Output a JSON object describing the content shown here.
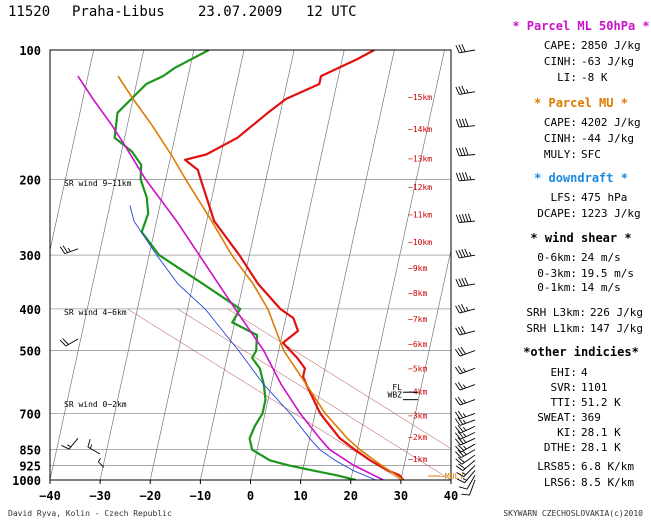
{
  "header": {
    "station": "11520",
    "place": "Praha-Libus",
    "date": "23.07.2009",
    "time": "12 UTC"
  },
  "chart_data": {
    "type": "line",
    "chart_kind": "skew-T log-P diagram",
    "xlabel": "",
    "ylabel": "",
    "temp_range": [
      -40,
      40
    ],
    "temp_ticks": [
      "−40",
      "−30",
      "−20",
      "−10",
      "0",
      "10",
      "20",
      "30",
      "40"
    ],
    "temp_tick_values": [
      -40,
      -30,
      -20,
      -10,
      0,
      10,
      20,
      30,
      40
    ],
    "pressure_range": [
      1000,
      100
    ],
    "pressure_ticks": [
      100,
      200,
      300,
      400,
      500,
      700,
      850,
      925,
      1000
    ],
    "height_marks": [
      {
        "label": "−1km",
        "p": 890
      },
      {
        "label": "−2km",
        "p": 790
      },
      {
        "label": "−3km",
        "p": 705
      },
      {
        "label": "−4km",
        "p": 620
      },
      {
        "label": "−5km",
        "p": 548
      },
      {
        "label": "−6km",
        "p": 480
      },
      {
        "label": "−7km",
        "p": 420
      },
      {
        "label": "−8km",
        "p": 365
      },
      {
        "label": "−9km",
        "p": 320
      },
      {
        "label": "−10km",
        "p": 278
      },
      {
        "label": "−11km",
        "p": 240
      },
      {
        "label": "−12km",
        "p": 207
      },
      {
        "label": "−13km",
        "p": 178
      },
      {
        "label": "−14km",
        "p": 152
      },
      {
        "label": "−15km",
        "p": 128
      }
    ],
    "levels": [
      {
        "label": "FL",
        "p": 615
      },
      {
        "label": "WBZ",
        "p": 640
      },
      {
        "label": "−MULY",
        "p": 1000
      }
    ],
    "shear_labels": [
      {
        "text": "SR wind 9−11km",
        "p": 223
      },
      {
        "text": "SR wind 4−6km",
        "p": 445
      },
      {
        "text": "SR wind 0−2km",
        "p": 730
      }
    ],
    "series": [
      {
        "name": "temperature",
        "color": "#e31010",
        "points": [
          [
            1000,
            30.5
          ],
          [
            975,
            29.5
          ],
          [
            950,
            27
          ],
          [
            925,
            25
          ],
          [
            900,
            23
          ],
          [
            850,
            19.5
          ],
          [
            800,
            16
          ],
          [
            700,
            11
          ],
          [
            600,
            7
          ],
          [
            575,
            6
          ],
          [
            550,
            6
          ],
          [
            520,
            4
          ],
          [
            480,
            0.5
          ],
          [
            450,
            3
          ],
          [
            420,
            1.5
          ],
          [
            400,
            -1.5
          ],
          [
            350,
            -7
          ],
          [
            300,
            -12
          ],
          [
            250,
            -18.5
          ],
          [
            200,
            -23
          ],
          [
            190,
            -24
          ],
          [
            180,
            -27
          ],
          [
            175,
            -23
          ],
          [
            160,
            -17.5
          ],
          [
            140,
            -12.5
          ],
          [
            130,
            -9.5
          ],
          [
            120,
            -3.5
          ],
          [
            115,
            -3.5
          ],
          [
            105,
            3
          ],
          [
            100,
            6
          ]
        ]
      },
      {
        "name": "dewpoint",
        "color": "#1c961c",
        "points": [
          [
            1000,
            21
          ],
          [
            975,
            17
          ],
          [
            950,
            12
          ],
          [
            925,
            7
          ],
          [
            900,
            3
          ],
          [
            850,
            -1
          ],
          [
            800,
            -2
          ],
          [
            750,
            -1.5
          ],
          [
            700,
            -0.5
          ],
          [
            650,
            -0.5
          ],
          [
            600,
            -1.5
          ],
          [
            550,
            -3
          ],
          [
            520,
            -5
          ],
          [
            500,
            -4.5
          ],
          [
            460,
            -5
          ],
          [
            430,
            -10.5
          ],
          [
            400,
            -9.5
          ],
          [
            350,
            -18
          ],
          [
            300,
            -28
          ],
          [
            265,
            -32.5
          ],
          [
            240,
            -32
          ],
          [
            220,
            -33
          ],
          [
            200,
            -35
          ],
          [
            185,
            -35.5
          ],
          [
            172,
            -38
          ],
          [
            160,
            -42
          ],
          [
            140,
            -42.5
          ],
          [
            120,
            -38
          ],
          [
            115,
            -35
          ],
          [
            110,
            -33
          ],
          [
            100,
            -27
          ]
        ]
      },
      {
        "name": "parcel-ml",
        "color": "#cc10cc",
        "points": [
          [
            1000,
            26.5
          ],
          [
            925,
            20
          ],
          [
            850,
            14.5
          ],
          [
            800,
            12
          ],
          [
            700,
            7
          ],
          [
            600,
            2
          ],
          [
            500,
            -3
          ],
          [
            400,
            -10.5
          ],
          [
            300,
            -20
          ],
          [
            250,
            -26
          ],
          [
            200,
            -34
          ],
          [
            170,
            -39
          ],
          [
            150,
            -43
          ],
          [
            130,
            -48
          ],
          [
            115,
            -52
          ]
        ]
      },
      {
        "name": "parcel-mu",
        "color": "#dd7a00",
        "points": [
          [
            1000,
            30.5
          ],
          [
            925,
            25.5
          ],
          [
            850,
            20.5
          ],
          [
            800,
            17.5
          ],
          [
            700,
            12
          ],
          [
            600,
            7
          ],
          [
            500,
            1
          ],
          [
            400,
            -4
          ],
          [
            350,
            -8
          ],
          [
            300,
            -13.5
          ],
          [
            250,
            -19
          ],
          [
            200,
            -26
          ],
          [
            175,
            -30
          ],
          [
            150,
            -35
          ],
          [
            130,
            -40
          ],
          [
            115,
            -44
          ]
        ]
      },
      {
        "name": "virtual-temperature",
        "color": "#2244dd",
        "points": [
          [
            1000,
            25
          ],
          [
            950,
            20
          ],
          [
            900,
            16
          ],
          [
            850,
            12.5
          ],
          [
            800,
            10
          ],
          [
            700,
            5
          ],
          [
            600,
            -1.5
          ],
          [
            500,
            -8
          ],
          [
            400,
            -16.5
          ],
          [
            350,
            -23
          ],
          [
            300,
            -28.5
          ],
          [
            250,
            -34.5
          ],
          [
            230,
            -36
          ]
        ]
      }
    ],
    "wind_barbs": [
      {
        "p": 1000,
        "dir": 200,
        "kt": 10
      },
      {
        "p": 975,
        "dir": 210,
        "kt": 12
      },
      {
        "p": 950,
        "dir": 220,
        "kt": 15
      },
      {
        "p": 925,
        "dir": 225,
        "kt": 18
      },
      {
        "p": 900,
        "dir": 230,
        "kt": 20
      },
      {
        "p": 875,
        "dir": 235,
        "kt": 22
      },
      {
        "p": 850,
        "dir": 240,
        "kt": 25
      },
      {
        "p": 825,
        "dir": 240,
        "kt": 25
      },
      {
        "p": 800,
        "dir": 245,
        "kt": 25
      },
      {
        "p": 775,
        "dir": 245,
        "kt": 25
      },
      {
        "p": 750,
        "dir": 245,
        "kt": 25
      },
      {
        "p": 725,
        "dir": 250,
        "kt": 25
      },
      {
        "p": 700,
        "dir": 250,
        "kt": 25
      },
      {
        "p": 650,
        "dir": 250,
        "kt": 25
      },
      {
        "p": 600,
        "dir": 250,
        "kt": 25
      },
      {
        "p": 550,
        "dir": 250,
        "kt": 25
      },
      {
        "p": 500,
        "dir": 250,
        "kt": 30
      },
      {
        "p": 450,
        "dir": 255,
        "kt": 30
      },
      {
        "p": 400,
        "dir": 255,
        "kt": 35
      },
      {
        "p": 350,
        "dir": 260,
        "kt": 40
      },
      {
        "p": 300,
        "dir": 260,
        "kt": 45
      },
      {
        "p": 250,
        "dir": 265,
        "kt": 50
      },
      {
        "p": 200,
        "dir": 265,
        "kt": 45
      },
      {
        "p": 175,
        "dir": 265,
        "kt": 40
      },
      {
        "p": 150,
        "dir": 265,
        "kt": 40
      },
      {
        "p": 125,
        "dir": 260,
        "kt": 35
      },
      {
        "p": 100,
        "dir": 260,
        "kt": 30
      }
    ],
    "hodograph_barbs": [
      {
        "p": 290,
        "dir": 250,
        "kt": 25
      },
      {
        "p": 470,
        "dir": 240,
        "kt": 20
      },
      {
        "p": 800,
        "dir": 220,
        "kt": 15
      }
    ]
  },
  "panel": {
    "parcel_ml": {
      "title": "* Parcel ML 50hPa *",
      "rows": [
        {
          "label": "CAPE:",
          "value": "2850 J/kg"
        },
        {
          "label": "CINH:",
          "value": "-63 J/kg"
        },
        {
          "label": "LI:",
          "value": "-8 K"
        }
      ]
    },
    "parcel_mu": {
      "title": "* Parcel MU *",
      "rows": [
        {
          "label": "CAPE:",
          "value": "4202 J/kg"
        },
        {
          "label": "CINH:",
          "value": "-44 J/kg"
        },
        {
          "label": "MULY:",
          "value": "SFC"
        }
      ]
    },
    "downdraft": {
      "title": "* downdraft *",
      "rows": [
        {
          "label": "LFS:",
          "value": "475 hPa"
        },
        {
          "label": "DCAPE:",
          "value": "1223 J/kg"
        }
      ]
    },
    "wind_shear": {
      "title": "* wind shear *",
      "rows": [
        {
          "label": "0-6km:",
          "value": "24 m/s"
        },
        {
          "label": "0-3km:",
          "value": "19.5 m/s"
        },
        {
          "label": "0-1km:",
          "value": "14 m/s"
        }
      ]
    },
    "srh": {
      "rows": [
        {
          "label": "SRH L3km:",
          "value": "226 J/kg"
        },
        {
          "label": "SRH L1km:",
          "value": "147 J/kg"
        }
      ]
    },
    "other": {
      "title": "*other indicies*",
      "rows": [
        {
          "label": "EHI:",
          "value": "4"
        },
        {
          "label": "SVR:",
          "value": "1101"
        },
        {
          "label": "TTI:",
          "value": "51.2 K"
        },
        {
          "label": "SWEAT:",
          "value": "369"
        },
        {
          "label": "KI:",
          "value": "28.1 K"
        },
        {
          "label": "DTHE:",
          "value": "28.1 K"
        }
      ]
    },
    "lapse": {
      "rows": [
        {
          "label": "LRS85:",
          "value": "6.8 K/km"
        },
        {
          "label": "LRS6:",
          "value": "8.5 K/km"
        }
      ]
    }
  },
  "footer": {
    "left": "David Ryva, Kolin - Czech Republic",
    "right": "SKYWARN CZECHOSLOVAKIA(c)2010"
  },
  "colors": {
    "temperature": "#e31010",
    "dewpoint": "#1c961c",
    "parcel_ml": "#cc10cc",
    "parcel_mu": "#dd7a00",
    "virtual": "#2244dd",
    "downdraft_title": "#1a8ae0",
    "height_marks": "#cc0000",
    "isotherm": "#555555",
    "grid": "#888888"
  }
}
